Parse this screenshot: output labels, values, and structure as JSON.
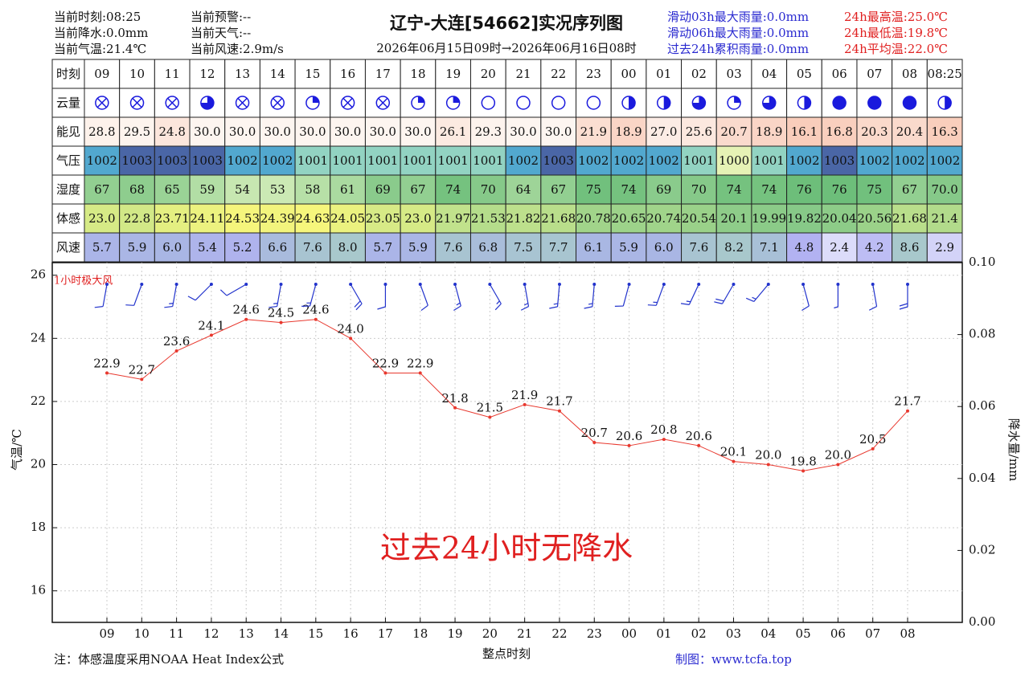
{
  "header": {
    "left": [
      "当前时刻:08:25",
      "当前降水:0.0mm",
      "当前气温:21.4℃",
      "当前预警:--",
      "当前天气:--",
      "当前风速:2.9m/s"
    ],
    "title": "辽宁-大连[54662]实况序列图",
    "subtitle": "2026年06月15日09时→2026年06月16日08时",
    "rain": [
      "滑动03h最大雨量:0.0mm",
      "滑动06h最大雨量:0.0mm",
      "过去24h累积雨量:0.0mm"
    ],
    "temp": [
      "24h最高温:25.0℃",
      "24h最低温:19.8℃",
      "24h平均温:22.0℃"
    ]
  },
  "table": {
    "row_labels": [
      "时刻",
      "云量",
      "能见",
      "气压",
      "湿度",
      "体感",
      "风速"
    ],
    "hours": [
      "09",
      "10",
      "11",
      "12",
      "13",
      "14",
      "15",
      "16",
      "17",
      "18",
      "19",
      "20",
      "21",
      "22",
      "23",
      "00",
      "01",
      "02",
      "03",
      "04",
      "05",
      "06",
      "07",
      "08",
      "08:25"
    ],
    "cloud": [
      9,
      9,
      9,
      6,
      9,
      9,
      2,
      9,
      9,
      2,
      2,
      0,
      0,
      0,
      0,
      4,
      4,
      6,
      2,
      6,
      4,
      8,
      8,
      8,
      4
    ],
    "visibility": [
      "28.8",
      "29.5",
      "24.8",
      "30.0",
      "30.0",
      "30.0",
      "30.0",
      "30.0",
      "30.0",
      "30.0",
      "26.1",
      "29.3",
      "30.0",
      "30.0",
      "21.9",
      "18.9",
      "27.0",
      "25.6",
      "20.7",
      "18.9",
      "16.1",
      "16.8",
      "20.3",
      "20.4",
      "16.3"
    ],
    "pressure": [
      "1002",
      "1003",
      "1003",
      "1003",
      "1002",
      "1002",
      "1001",
      "1001",
      "1001",
      "1001",
      "1001",
      "1001",
      "1002",
      "1003",
      "1002",
      "1002",
      "1002",
      "1001",
      "1000",
      "1001",
      "1002",
      "1003",
      "1002",
      "1002",
      "1002"
    ],
    "humidity": [
      "67",
      "68",
      "65",
      "59",
      "54",
      "53",
      "58",
      "61",
      "69",
      "67",
      "74",
      "70",
      "64",
      "67",
      "75",
      "74",
      "69",
      "70",
      "74",
      "74",
      "76",
      "76",
      "75",
      "67",
      "70.0"
    ],
    "feels": [
      "23.0",
      "22.8",
      "23.71",
      "24.11",
      "24.53",
      "24.39",
      "24.63",
      "24.05",
      "23.05",
      "23.0",
      "21.97",
      "21.53",
      "21.82",
      "21.68",
      "20.78",
      "20.65",
      "20.74",
      "20.54",
      "20.1",
      "19.99",
      "19.82",
      "20.04",
      "20.56",
      "21.68",
      "21.4"
    ],
    "wind": [
      "5.7",
      "5.9",
      "6.0",
      "5.4",
      "5.2",
      "6.6",
      "7.6",
      "8.0",
      "5.7",
      "5.9",
      "7.6",
      "6.8",
      "7.5",
      "7.7",
      "6.1",
      "5.9",
      "6.0",
      "7.6",
      "8.2",
      "7.1",
      "4.8",
      "2.4",
      "4.2",
      "8.6",
      "2.9"
    ]
  },
  "chart_data": {
    "type": "line",
    "x_label": "整点时刻",
    "y_label": "气温/℃",
    "y2_label": "降水量/mm",
    "annotations": [
      "1小时极大风",
      "过去24小时无降水"
    ],
    "categories": [
      "09",
      "10",
      "11",
      "12",
      "13",
      "14",
      "15",
      "16",
      "17",
      "18",
      "19",
      "20",
      "21",
      "22",
      "23",
      "00",
      "01",
      "02",
      "03",
      "04",
      "05",
      "06",
      "07",
      "08"
    ],
    "series": [
      {
        "color": "#e8382e",
        "values": [
          22.9,
          22.7,
          23.6,
          24.1,
          24.6,
          24.5,
          24.6,
          24.0,
          22.9,
          22.9,
          21.8,
          21.5,
          21.9,
          21.7,
          20.7,
          20.6,
          20.8,
          20.6,
          20.1,
          20.0,
          19.8,
          20.0,
          20.5,
          21.7
        ],
        "value_labels": [
          "22.9",
          "22.7",
          "23.6",
          "24.1",
          "24.6",
          "24.5",
          "24.6",
          "24.0",
          "22.9",
          "22.9",
          "21.8",
          "21.5",
          "21.9",
          "21.7",
          "20.7",
          "20.6",
          "20.8",
          "20.6",
          "20.1",
          "20.0",
          "19.8",
          "20.0",
          "20.5",
          "21.7"
        ]
      }
    ],
    "wind_dir": [
      190,
      200,
      190,
      225,
      240,
      190,
      195,
      150,
      180,
      160,
      165,
      150,
      170,
      185,
      185,
      195,
      200,
      205,
      210,
      220,
      165,
      180,
      170,
      180
    ],
    "wind_color": "#2233cc",
    "ylim": [
      15,
      26.4
    ],
    "yticks": [
      16,
      18,
      20,
      22,
      24,
      26
    ],
    "y2lim": [
      0,
      0.1
    ],
    "y2ticks": [
      {
        "value": 0,
        "label": "0.00"
      },
      {
        "value": 0.02,
        "label": "0.02"
      },
      {
        "value": 0.04,
        "label": "0.04"
      },
      {
        "value": 0.06,
        "label": "0.06"
      },
      {
        "value": 0.08,
        "label": "0.08"
      },
      {
        "value": 0.1,
        "label": "0.10"
      }
    ],
    "grid": true
  },
  "footer": {
    "note": "注：体感温度采用NOAA Heat Index公式",
    "credit": "制图：www.tcfa.top"
  }
}
